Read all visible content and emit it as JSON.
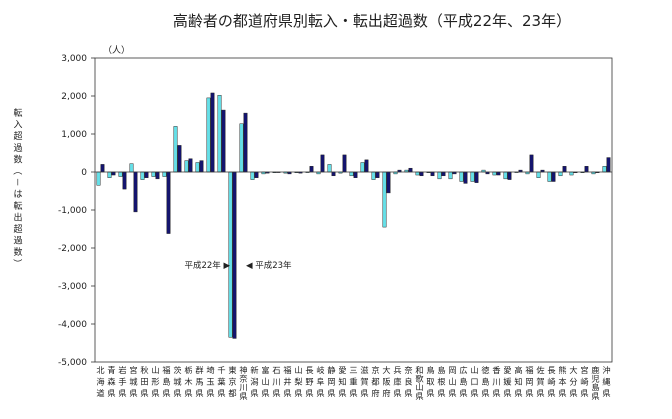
{
  "chart_data": {
    "type": "bar",
    "title": "高齢者の都道府県別転入・転出超過数（平成22年、23年）",
    "unit": "（人）",
    "ylabel": "転入超過数（－は転出超過数）",
    "ylim": [
      -5000,
      3000
    ],
    "yticks": [
      3000,
      2000,
      1000,
      0,
      -1000,
      -2000,
      -3000,
      -4000,
      -5000
    ],
    "ytick_labels": [
      "3,000",
      "2,000",
      "1,000",
      "0",
      "-1,000",
      "-2,000",
      "-3,000",
      "-4,000",
      "-5,000"
    ],
    "categories": [
      "北海道",
      "青森県",
      "岩手県",
      "宮城県",
      "秋田県",
      "山形県",
      "福島県",
      "茨城県",
      "栃木県",
      "群馬県",
      "埼玉県",
      "千葉県",
      "東京都",
      "神奈川県",
      "新潟県",
      "富山県",
      "石川県",
      "福井県",
      "山梨県",
      "長野県",
      "岐阜県",
      "静岡県",
      "愛知県",
      "三重県",
      "滋賀県",
      "京都府",
      "大阪府",
      "兵庫県",
      "奈良県",
      "和歌山県",
      "鳥取県",
      "島根県",
      "岡山県",
      "広島県",
      "山口県",
      "徳島県",
      "香川県",
      "愛媛県",
      "高知県",
      "福岡県",
      "佐賀県",
      "長崎県",
      "熊本県",
      "大分県",
      "宮崎県",
      "鹿児島県",
      "沖縄県"
    ],
    "category_glyphs": [
      [
        "北",
        "海",
        "道"
      ],
      [
        "青",
        "森",
        "県"
      ],
      [
        "岩",
        "手",
        "県"
      ],
      [
        "宮",
        "城",
        "県"
      ],
      [
        "秋",
        "田",
        "県"
      ],
      [
        "山",
        "形",
        "県"
      ],
      [
        "福",
        "島",
        "県"
      ],
      [
        "茨",
        "城",
        "県"
      ],
      [
        "栃",
        "木",
        "県"
      ],
      [
        "群",
        "馬",
        "県"
      ],
      [
        "埼",
        "玉",
        "県"
      ],
      [
        "千",
        "葉",
        "県"
      ],
      [
        "東",
        "京",
        "都"
      ],
      [
        "神",
        "奈",
        "川",
        "県"
      ],
      [
        "新",
        "潟",
        "県"
      ],
      [
        "富",
        "山",
        "県"
      ],
      [
        "石",
        "川",
        "県"
      ],
      [
        "福",
        "井",
        "県"
      ],
      [
        "山",
        "梨",
        "県"
      ],
      [
        "長",
        "野",
        "県"
      ],
      [
        "岐",
        "阜",
        "県"
      ],
      [
        "静",
        "岡",
        "県"
      ],
      [
        "愛",
        "知",
        "県"
      ],
      [
        "三",
        "重",
        "県"
      ],
      [
        "滋",
        "賀",
        "県"
      ],
      [
        "京",
        "都",
        "府"
      ],
      [
        "大",
        "阪",
        "府"
      ],
      [
        "兵",
        "庫",
        "県"
      ],
      [
        "奈",
        "良",
        "県"
      ],
      [
        "和",
        "歌",
        "山",
        "県"
      ],
      [
        "鳥",
        "取",
        "県"
      ],
      [
        "島",
        "根",
        "県"
      ],
      [
        "岡",
        "山",
        "県"
      ],
      [
        "広",
        "島",
        "県"
      ],
      [
        "山",
        "口",
        "県"
      ],
      [
        "徳",
        "島",
        "県"
      ],
      [
        "香",
        "川",
        "県"
      ],
      [
        "愛",
        "媛",
        "県"
      ],
      [
        "高",
        "知",
        "県"
      ],
      [
        "福",
        "岡",
        "県"
      ],
      [
        "佐",
        "賀",
        "県"
      ],
      [
        "長",
        "崎",
        "県"
      ],
      [
        "熊",
        "本",
        "県"
      ],
      [
        "大",
        "分",
        "県"
      ],
      [
        "宮",
        "崎",
        "県"
      ],
      [
        "鹿",
        "児",
        "島",
        "県"
      ],
      [
        "沖",
        "縄",
        "県"
      ]
    ],
    "series": [
      {
        "name": "平成22年",
        "color": "#66e0e8",
        "values": [
          -350,
          -150,
          -120,
          220,
          -200,
          -120,
          -120,
          1200,
          300,
          250,
          1950,
          2020,
          -4350,
          1270,
          -200,
          -50,
          -20,
          -30,
          -20,
          -10,
          -50,
          200,
          -30,
          -100,
          250,
          -200,
          -1450,
          -50,
          50,
          -80,
          -20,
          -180,
          -180,
          -250,
          -250,
          50,
          -80,
          -180,
          -10,
          -50,
          -150,
          -250,
          -100,
          -80,
          -20,
          -50,
          150
        ]
      },
      {
        "name": "平成23年",
        "color": "#14146e",
        "values": [
          200,
          -80,
          -450,
          -1050,
          -150,
          -180,
          -1620,
          700,
          350,
          300,
          2080,
          1630,
          -4380,
          1550,
          -150,
          -30,
          0,
          -50,
          -30,
          150,
          450,
          -100,
          450,
          -150,
          320,
          -150,
          -550,
          50,
          100,
          -100,
          -100,
          -100,
          -50,
          -300,
          -280,
          -50,
          -80,
          -200,
          50,
          450,
          50,
          -250,
          150,
          -20,
          150,
          -20,
          380
        ]
      }
    ],
    "annotation_left": "平成22年 ▶",
    "annotation_right": "◀ 平成23年",
    "grid": false,
    "legend": "none"
  }
}
